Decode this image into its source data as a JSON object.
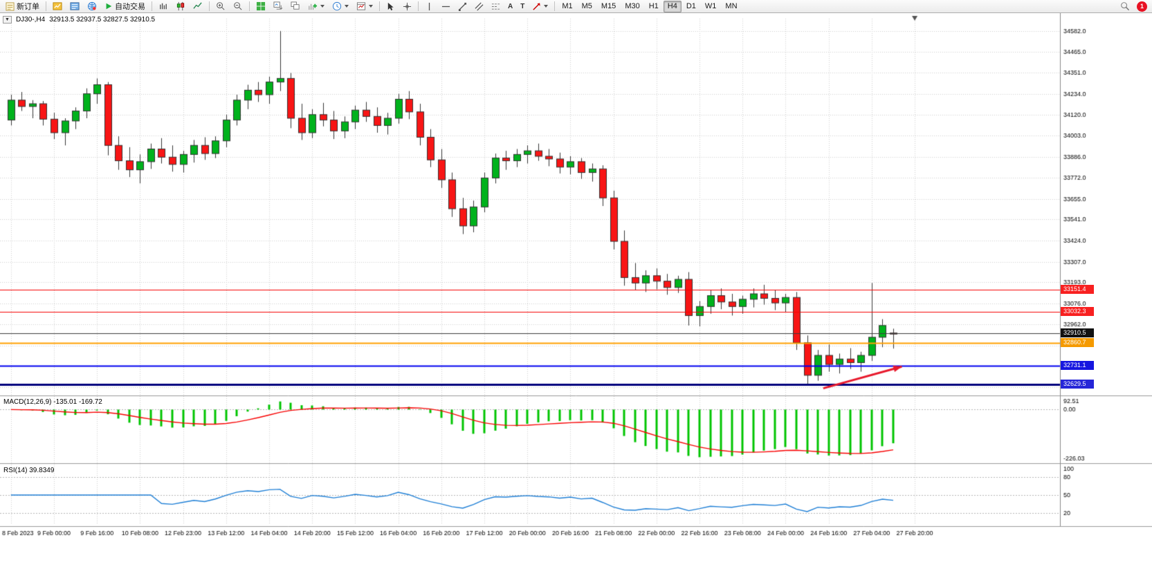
{
  "toolbar": {
    "new_order": "新订单",
    "autotrading": "自动交易",
    "timeframes": [
      "M1",
      "M5",
      "M15",
      "M30",
      "H1",
      "H4",
      "D1",
      "W1",
      "MN"
    ],
    "active_timeframe": "H4",
    "text_tool": "A",
    "label_tool": "T",
    "collapse_glyph": "▼",
    "notification_count": "1"
  },
  "chart": {
    "title_symbol": "DJ30-,H4",
    "title_ohlc": "32913.5 32937.5 32827.5 32910.5"
  },
  "chart_data": {
    "type": "candlestick",
    "symbol": "DJ30-",
    "timeframe": "H4",
    "colors": {
      "bull": "#00B21C",
      "bear": "#F81515",
      "outline": "#333333",
      "grid": "#cfcfcf"
    },
    "total_slots": 98,
    "x_label_every": 4,
    "x_labels": [
      "8 Feb 2023",
      "9 Feb 00:00",
      "9 Feb 16:00",
      "10 Feb 08:00",
      "12 Feb 23:00",
      "13 Feb 12:00",
      "14 Feb 04:00",
      "14 Feb 20:00",
      "15 Feb 12:00",
      "16 Feb 04:00",
      "16 Feb 20:00",
      "17 Feb 12:00",
      "20 Feb 00:00",
      "20 Feb 16:00",
      "21 Feb 08:00",
      "22 Feb 00:00",
      "22 Feb 16:00",
      "23 Feb 08:00",
      "24 Feb 00:00",
      "24 Feb 16:00",
      "27 Feb 04:00",
      "27 Feb 20:00"
    ],
    "price_ticks": [
      "34582.0",
      "34465.0",
      "34351.0",
      "34234.0",
      "34120.0",
      "34003.0",
      "33886.0",
      "33772.0",
      "33655.0",
      "33541.0",
      "33424.0",
      "33307.0",
      "33193.0",
      "33076.0",
      "32962.0"
    ],
    "price_grid_extra": [
      32845,
      32731,
      32614
    ],
    "price_range": [
      32580,
      34650
    ],
    "ohlc": [
      [
        34090,
        34230,
        34060,
        34200
      ],
      [
        34200,
        34245,
        34140,
        34165
      ],
      [
        34165,
        34200,
        34100,
        34180
      ],
      [
        34180,
        34195,
        34060,
        34095
      ],
      [
        34095,
        34130,
        33985,
        34020
      ],
      [
        34020,
        34100,
        33950,
        34085
      ],
      [
        34085,
        34160,
        34040,
        34140
      ],
      [
        34140,
        34265,
        34100,
        34235
      ],
      [
        34235,
        34320,
        34180,
        34285
      ],
      [
        34285,
        34300,
        33895,
        33950
      ],
      [
        33950,
        34000,
        33815,
        33865
      ],
      [
        33865,
        33940,
        33775,
        33815
      ],
      [
        33815,
        33900,
        33740,
        33860
      ],
      [
        33860,
        33960,
        33820,
        33930
      ],
      [
        33930,
        33990,
        33850,
        33885
      ],
      [
        33885,
        33950,
        33805,
        33845
      ],
      [
        33845,
        33920,
        33800,
        33900
      ],
      [
        33900,
        33980,
        33855,
        33950
      ],
      [
        33950,
        33995,
        33870,
        33905
      ],
      [
        33905,
        34000,
        33880,
        33975
      ],
      [
        33975,
        34120,
        33940,
        34090
      ],
      [
        34090,
        34230,
        34060,
        34200
      ],
      [
        34200,
        34285,
        34150,
        34255
      ],
      [
        34255,
        34300,
        34190,
        34230
      ],
      [
        34230,
        34330,
        34180,
        34300
      ],
      [
        34300,
        34582,
        34250,
        34320
      ],
      [
        34320,
        34350,
        34045,
        34100
      ],
      [
        34100,
        34180,
        33980,
        34020
      ],
      [
        34020,
        34150,
        33990,
        34120
      ],
      [
        34120,
        34185,
        34055,
        34090
      ],
      [
        34090,
        34140,
        33985,
        34030
      ],
      [
        34030,
        34110,
        33990,
        34080
      ],
      [
        34080,
        34170,
        34040,
        34145
      ],
      [
        34145,
        34190,
        34080,
        34110
      ],
      [
        34110,
        34160,
        34020,
        34060
      ],
      [
        34060,
        34130,
        34010,
        34100
      ],
      [
        34100,
        34235,
        34070,
        34205
      ],
      [
        34205,
        34250,
        34095,
        34135
      ],
      [
        34135,
        34180,
        33950,
        33995
      ],
      [
        33995,
        34040,
        33830,
        33870
      ],
      [
        33870,
        33930,
        33715,
        33760
      ],
      [
        33760,
        33800,
        33555,
        33600
      ],
      [
        33600,
        33660,
        33460,
        33505
      ],
      [
        33505,
        33645,
        33470,
        33610
      ],
      [
        33610,
        33800,
        33580,
        33770
      ],
      [
        33770,
        33905,
        33740,
        33880
      ],
      [
        33880,
        33920,
        33815,
        33865
      ],
      [
        33865,
        33930,
        33830,
        33900
      ],
      [
        33900,
        33950,
        33850,
        33920
      ],
      [
        33920,
        33960,
        33865,
        33890
      ],
      [
        33890,
        33930,
        33835,
        33875
      ],
      [
        33875,
        33910,
        33795,
        33830
      ],
      [
        33830,
        33890,
        33790,
        33860
      ],
      [
        33860,
        33880,
        33765,
        33800
      ],
      [
        33800,
        33850,
        33750,
        33820
      ],
      [
        33820,
        33840,
        33615,
        33660
      ],
      [
        33660,
        33700,
        33375,
        33420
      ],
      [
        33420,
        33480,
        33175,
        33220
      ],
      [
        33220,
        33300,
        33150,
        33190
      ],
      [
        33190,
        33260,
        33140,
        33230
      ],
      [
        33230,
        33270,
        33155,
        33200
      ],
      [
        33200,
        33240,
        33125,
        33165
      ],
      [
        33165,
        33230,
        33135,
        33210
      ],
      [
        33210,
        33250,
        32955,
        33010
      ],
      [
        33010,
        33090,
        32950,
        33060
      ],
      [
        33060,
        33150,
        33020,
        33120
      ],
      [
        33120,
        33160,
        33045,
        33085
      ],
      [
        33085,
        33130,
        33010,
        33060
      ],
      [
        33060,
        33120,
        33020,
        33100
      ],
      [
        33100,
        33160,
        33055,
        33130
      ],
      [
        33130,
        33180,
        33070,
        33105
      ],
      [
        33105,
        33150,
        33040,
        33080
      ],
      [
        33080,
        33130,
        33030,
        33110
      ],
      [
        33110,
        33140,
        32820,
        32860
      ],
      [
        32860,
        32900,
        32629.5,
        32680
      ],
      [
        32680,
        32820,
        32650,
        32790
      ],
      [
        32790,
        32850,
        32700,
        32740
      ],
      [
        32740,
        32800,
        32690,
        32770
      ],
      [
        32770,
        32830,
        32715,
        32750
      ],
      [
        32750,
        32810,
        32700,
        32790
      ],
      [
        32790,
        33190,
        32760,
        32890
      ],
      [
        32890,
        32990,
        32835,
        32955
      ],
      [
        32913.5,
        32937.5,
        32827.5,
        32910.5
      ]
    ],
    "hlines": [
      {
        "price": 33151.4,
        "label": "33151.4",
        "color": "#F80000",
        "width": 1,
        "badge": "#F82020"
      },
      {
        "price": 33032.3,
        "label": "33032.3",
        "color": "#F80000",
        "width": 1,
        "badge": "#F82020"
      },
      {
        "price": 32910.5,
        "label": "32910.5",
        "color": "#3C3C3C",
        "width": 1,
        "badge": "#111111"
      },
      {
        "price": 32860.7,
        "label": "32860.7",
        "color": "#FFA000",
        "width": 2,
        "badge": "#F59A00"
      },
      {
        "price": 32731.1,
        "label": "32731.1",
        "color": "#0000F0",
        "width": 2,
        "badge": "#1616E0"
      },
      {
        "price": 32629.5,
        "label": "32629.5",
        "color": "#00007B",
        "width": 3,
        "badge": "#2626D8"
      }
    ],
    "arrow": {
      "from_slot": 75.5,
      "from_price": 32608,
      "to_slot": 82.8,
      "to_price": 32728,
      "color": "#E8192C",
      "width": 3
    },
    "shift_marker_slot": 84,
    "macd": {
      "label": "MACD(12,26,9) -135.01 -169.72",
      "params": [
        12,
        26,
        9
      ],
      "scale": [
        "92.51",
        "0.00",
        "-226.03"
      ],
      "hist_color": "#00C400",
      "signal_color": "#F80000"
    },
    "rsi": {
      "label": "RSI(14) 39.8349",
      "period": 14,
      "scale": [
        "100",
        "80",
        "50",
        "20"
      ],
      "levels": [
        80,
        50,
        20
      ],
      "color": "#1E7FD6"
    }
  }
}
